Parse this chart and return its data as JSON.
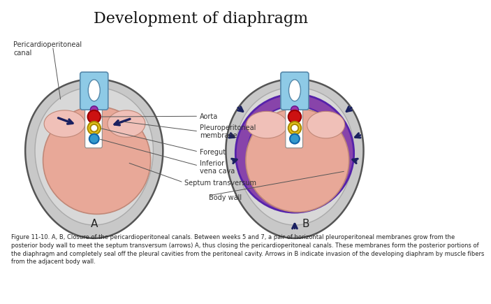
{
  "title": "Development of diaphragm",
  "title_fontsize": 16,
  "bg_color": "#ffffff",
  "label_A": "A",
  "label_B": "B",
  "outer_gray": "#c8c8c8",
  "outer_edge": "#555555",
  "inner_gray": "#d8d8d8",
  "lung_pink": "#e8a898",
  "lung_edge": "#c08878",
  "wing_pink": "#f0c0b8",
  "perio_canal_bg": "#e8e8e8",
  "perio_canal_edge": "#888888",
  "blue_oval_outer": "#8ecae6",
  "blue_oval_inner": "#ffffff",
  "purple_dot": "#9933aa",
  "red_circle": "#cc1111",
  "yellow_ring": "#e8c820",
  "cyan_circle": "#3399cc",
  "white": "#ffffff",
  "dark_navy": "#1a2060",
  "purple_ring": "#8844aa",
  "purple_ring_edge": "#5522aa",
  "ann_color": "#333333",
  "ann_fs": 7,
  "caption_fs": 6,
  "caption": "Figure 11-10. A, B, Closure of the pericardioperitoneal canals. Between weeks 5 and 7, a pair of horizontal pleuroperitoneal membranes grow from the posterior body wall to meet the septum transversum (arrows) A, thus closing the pericardioperitoneal canals. These membranes form the posterior portions of the diaphragm and completely seal off the pleural cavities from the peritoneal cavity. Arrows in B indicate invasion of the developing diaphram by muscle fibers from the adjacent body wall."
}
